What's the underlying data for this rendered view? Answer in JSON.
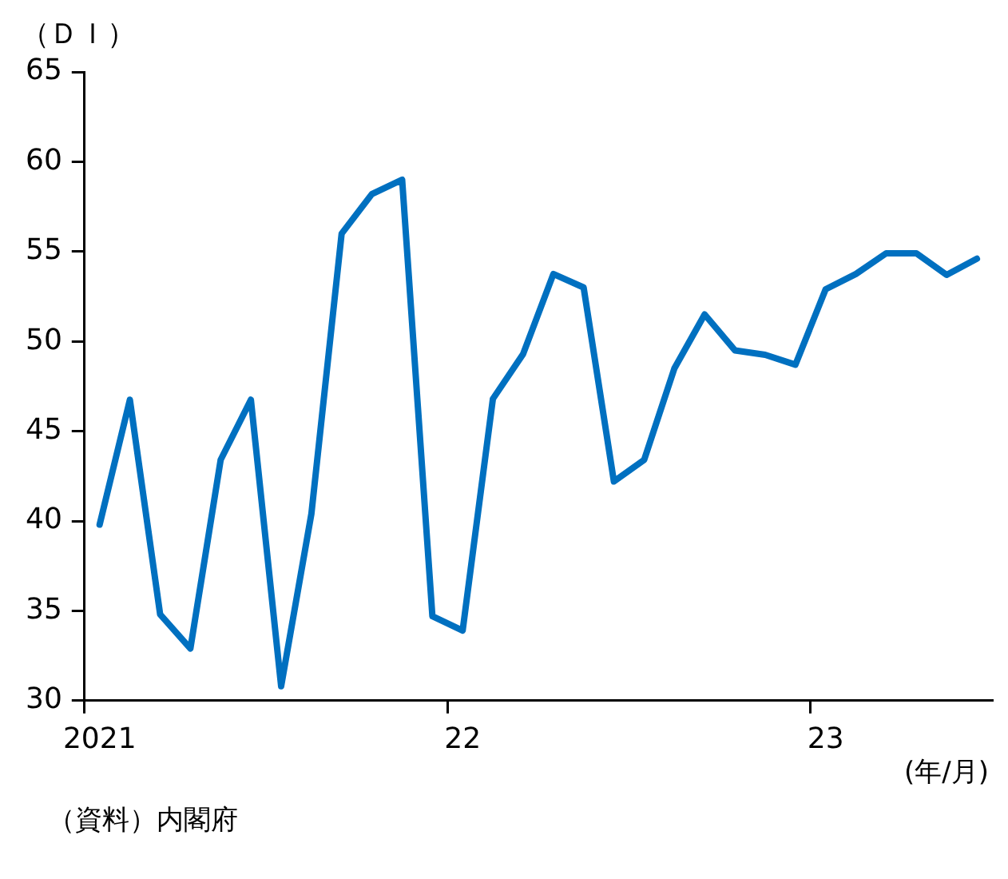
{
  "chart_data": {
    "type": "line",
    "ylabel": "（ＤＩ）",
    "categories": [
      "2021",
      null,
      null,
      null,
      null,
      null,
      null,
      null,
      null,
      null,
      null,
      null,
      "22",
      null,
      null,
      null,
      null,
      null,
      null,
      null,
      null,
      null,
      null,
      null,
      "23",
      null,
      null,
      null,
      null,
      null
    ],
    "series": [
      {
        "color": "#0070c0",
        "values": [
          39.8,
          46.75,
          34.8,
          32.9,
          43.4,
          46.75,
          30.8,
          40.4,
          56.0,
          58.2,
          59.0,
          34.7,
          33.9,
          46.8,
          49.3,
          53.75,
          53.0,
          42.2,
          43.4,
          48.5,
          51.5,
          49.5,
          49.25,
          48.7,
          52.9,
          53.75,
          54.9,
          54.9,
          53.7,
          54.6
        ]
      }
    ],
    "ylim": [
      30,
      65
    ],
    "yticks": [
      30,
      35,
      40,
      45,
      50,
      55,
      60,
      65
    ],
    "grid": false,
    "legend": false,
    "marker": "none",
    "line_style": "solid",
    "annotations": [
      "(年/月)",
      "（資料）内閣府"
    ]
  }
}
